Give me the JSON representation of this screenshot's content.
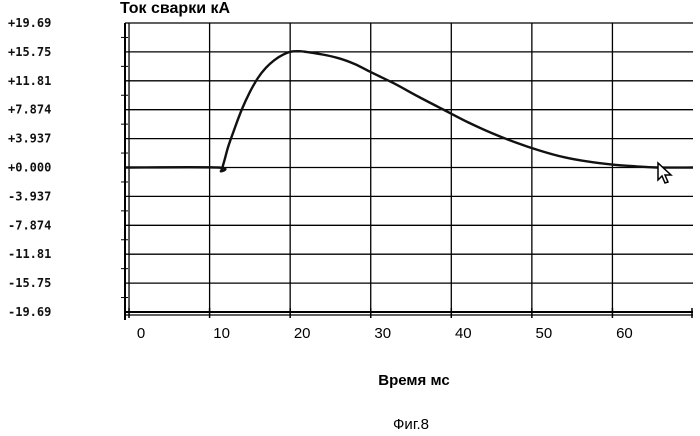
{
  "chart_data": {
    "type": "line",
    "title": "Ток сварки  кА",
    "xlabel": "Время мс",
    "ylabel": "",
    "xlim": [
      -0.5,
      70
    ],
    "ylim": [
      -19.69,
      19.69
    ],
    "x_ticks": [
      "0",
      "10",
      "20",
      "30",
      "40",
      "50",
      "60"
    ],
    "y_ticks": [
      "+19.69",
      "+15.75",
      "+11.81",
      "+7.874",
      "+3.937",
      "+0.000",
      "-3.937",
      "-7.874",
      "-11.81",
      "-15.75",
      "-19.69"
    ],
    "grid": true,
    "series": [
      {
        "x": [
          -0.5,
          11.0,
          11.4,
          11.8,
          12.3,
          13.0,
          14.0,
          15.0,
          16.0,
          17.0,
          18.0,
          19.0,
          20.0,
          21.0,
          22.0,
          24.0,
          26.0,
          28.0,
          30.0,
          33.0,
          36.0,
          39.0,
          42.0,
          45.0,
          48.0,
          51.0,
          54.0,
          57.0,
          60.0,
          63.0,
          65.5,
          70.0
        ],
        "y": [
          0.0,
          0.0,
          -0.5,
          0.8,
          2.8,
          5.0,
          7.9,
          10.3,
          12.2,
          13.6,
          14.6,
          15.3,
          15.75,
          15.85,
          15.75,
          15.4,
          14.9,
          14.1,
          13.0,
          11.4,
          9.6,
          7.9,
          6.2,
          4.7,
          3.4,
          2.3,
          1.4,
          0.8,
          0.4,
          0.15,
          0.0,
          0.0
        ],
        "color": "#111111"
      }
    ]
  },
  "caption": "Фиг.8"
}
